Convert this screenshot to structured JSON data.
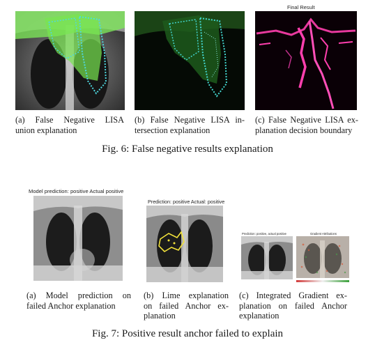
{
  "fig6": {
    "panel_c_title": "Final Result",
    "captions": {
      "a": [
        "(a) False Negative LISA",
        "union explanation"
      ],
      "b": [
        "(b) False Negative LISA in-",
        "tersection explanation"
      ],
      "c": [
        "(c) False Negative LISA ex-",
        "planation decision boundary"
      ]
    },
    "caption": "Fig. 6: False negative results explanation"
  },
  "fig7": {
    "panel_a_title": "Model prediction: positive Actual positive",
    "panel_b_title": "Prediction: positive Actual: positive",
    "panel_c_titles": [
      "Prediction: positive, actual positive",
      "Gradient Attributions"
    ],
    "captions": {
      "a": [
        "(a) Model prediction on",
        "failed Anchor explanation"
      ],
      "b": [
        "(b) Lime explanation",
        "on failed Anchor ex-",
        "planation"
      ],
      "c": [
        "(c) Integrated Gradient ex-",
        "planation on failed Anchor",
        "explanation"
      ]
    },
    "caption": "Fig. 7: Positive result anchor failed to explain"
  },
  "colors": {
    "union": "#6fe84a",
    "intersection": "#3fdccf",
    "boundary": "#ff3fae",
    "lime": "#f2e23a"
  }
}
